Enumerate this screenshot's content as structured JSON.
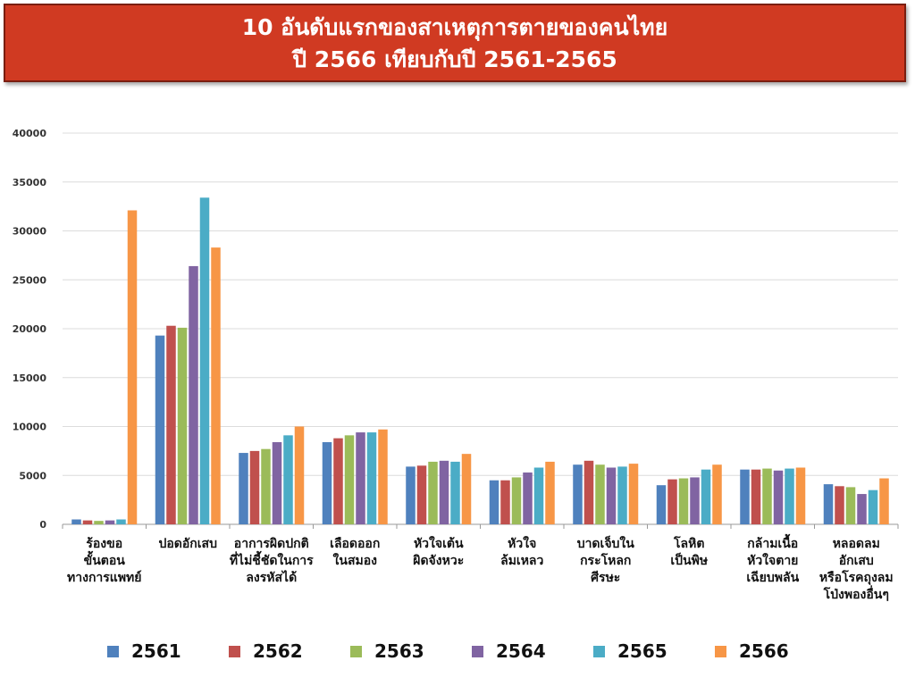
{
  "title": {
    "line1": "10 อันดับแรกของสาเหตุการตายของคนไทย",
    "line2": "ปี 2566 เทียบกับปี 2561-2565"
  },
  "chart_data": {
    "type": "bar",
    "title": "10 อันดับแรกของสาเหตุการตายของคนไทย ปี 2566 เทียบกับปี 2561-2565",
    "xlabel": "",
    "ylabel": "",
    "ylim": [
      0,
      40000
    ],
    "yticks": [
      0,
      5000,
      10000,
      15000,
      20000,
      25000,
      30000,
      35000,
      40000
    ],
    "grid": true,
    "legend_position": "bottom",
    "categories": [
      "ร้องขอ ขั้นตอน ทางการแพทย์",
      "ปอดอักเสบ",
      "อาการผิดปกติ ที่ไม่ชี้ชัดในการ ลงรหัสได้",
      "เลือดออก ในสมอง",
      "หัวใจเต้น ผิดจังหวะ",
      "หัวใจ ล้มเหลว",
      "บาดเจ็บใน กระโหลก ศีรษะ",
      "โลหิต เป็นพิษ",
      "กล้ามเนื้อ หัวใจตาย เฉียบพลัน",
      "หลอดลม อักเสบ หรือโรคถุงลม โป่งพองอื่นๆ"
    ],
    "category_lines": [
      [
        "ร้องขอ",
        "ขั้นตอน",
        "ทางการแพทย์"
      ],
      [
        "ปอดอักเสบ"
      ],
      [
        "อาการผิดปกติ",
        "ที่ไม่ชี้ชัดในการ",
        "ลงรหัสได้"
      ],
      [
        "เลือดออก",
        "ในสมอง"
      ],
      [
        "หัวใจเต้น",
        "ผิดจังหวะ"
      ],
      [
        "หัวใจ",
        "ล้มเหลว"
      ],
      [
        "บาดเจ็บใน",
        "กระโหลก",
        "ศีรษะ"
      ],
      [
        "โลหิต",
        "เป็นพิษ"
      ],
      [
        "กล้ามเนื้อ",
        "หัวใจตาย",
        "เฉียบพลัน"
      ],
      [
        "หลอดลม",
        "อักเสบ",
        "หรือโรคถุงลม",
        "โป่งพองอื่นๆ"
      ]
    ],
    "series": [
      {
        "name": "2561",
        "color": "#4f81bd",
        "values": [
          500,
          19300,
          7300,
          8400,
          5900,
          4500,
          6100,
          4000,
          5600,
          4100
        ]
      },
      {
        "name": "2562",
        "color": "#c0504d",
        "values": [
          400,
          20300,
          7500,
          8800,
          6000,
          4500,
          6500,
          4600,
          5600,
          3900
        ]
      },
      {
        "name": "2563",
        "color": "#9bbb59",
        "values": [
          350,
          20100,
          7700,
          9100,
          6400,
          4800,
          6100,
          4700,
          5700,
          3800
        ]
      },
      {
        "name": "2564",
        "color": "#8064a2",
        "values": [
          400,
          26400,
          8400,
          9400,
          6500,
          5300,
          5800,
          4800,
          5500,
          3100
        ]
      },
      {
        "name": "2565",
        "color": "#4bacc6",
        "values": [
          500,
          33400,
          9100,
          9400,
          6400,
          5800,
          5900,
          5600,
          5700,
          3500
        ]
      },
      {
        "name": "2566",
        "color": "#f79646",
        "values": [
          32100,
          28300,
          10000,
          9700,
          7200,
          6400,
          6200,
          6100,
          5800,
          4700
        ]
      }
    ]
  }
}
